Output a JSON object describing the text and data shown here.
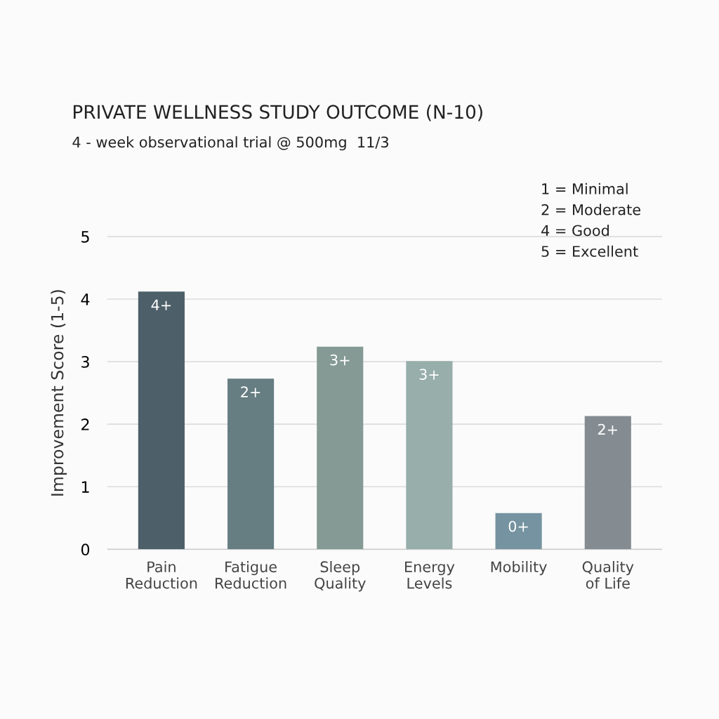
{
  "chart_data": {
    "type": "bar",
    "title": "PRIVATE WELLNESS STUDY OUTCOME (N-10)",
    "subtitle": "4 - week observational trial @ 500mg  11/3",
    "ylabel": "Improvement Score (1-5)",
    "categories": [
      "Pain\nReduction",
      "Fatigue\nReduction",
      "Sleep\nQuality",
      "Energy\nLevels",
      "Mobility",
      "Quality\nof Life"
    ],
    "values": [
      4.12,
      2.73,
      3.24,
      3.01,
      0.58,
      2.13
    ],
    "colors": [
      "#4d5f69",
      "#667d82",
      "#859a94",
      "#97aeaa",
      "#7593a0",
      "#858c91"
    ],
    "value_labels": [
      "4+",
      "2+",
      "3+",
      "3+",
      "0+",
      "2+"
    ],
    "ylim": [
      0,
      5
    ],
    "yticks": [
      0,
      1,
      2,
      3,
      4,
      5
    ],
    "grid": "y",
    "annotations": [
      "1 = Minimal",
      "2 = Moderate",
      "4 = Good",
      "5 = Excellent"
    ]
  }
}
